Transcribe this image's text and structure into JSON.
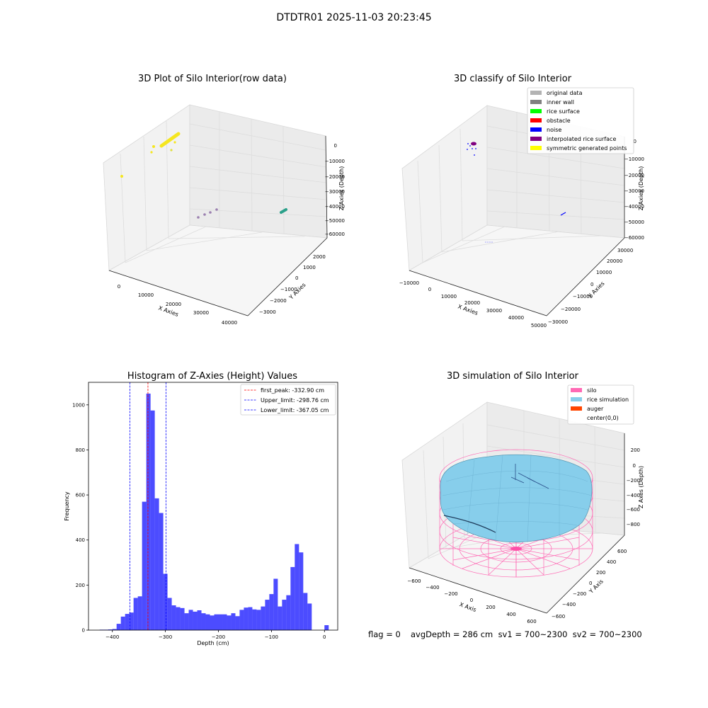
{
  "figure": {
    "suptitle": "DTDTR01 2025-11-03 20:23:45",
    "footer": {
      "flag": "flag = 0",
      "stats": "avgDepth = 286 cm  sv1 = 700~2300  sv2 = 700~2300"
    }
  },
  "chart_data": [
    {
      "type": "scatter",
      "projection": "3d",
      "title": "3D Plot of Silo Interior(row data)",
      "xlabel": "X Axies",
      "ylabel": "Y Axies",
      "zlabel": "Z Axies (Depth)",
      "x_ticks": [
        "0",
        "10000",
        "20000",
        "30000",
        "40000"
      ],
      "y_ticks": [
        "2000",
        "1000",
        "0",
        "−1000",
        "−2000",
        "−3000"
      ],
      "z_ticks": [
        "0",
        "−10000",
        "−20000",
        "−30000",
        "−40000",
        "−50000",
        "−60000"
      ],
      "colors": {
        "yellow": "#f5e61f",
        "purple": "#9b80b0",
        "teal": "#2aa08a"
      }
    },
    {
      "type": "scatter",
      "projection": "3d",
      "title": "3D classify of Silo Interior",
      "xlabel": "X Axies",
      "ylabel": "Y Axies",
      "zlabel": "Z Axies (Depth)",
      "x_ticks": [
        "−10000",
        "0",
        "10000",
        "20000",
        "30000",
        "40000",
        "50000"
      ],
      "y_ticks": [
        "30000",
        "20000",
        "10000",
        "0",
        "−10000",
        "−20000",
        "−30000"
      ],
      "z_ticks": [
        "0",
        "−10000",
        "−20000",
        "−30000",
        "−40000",
        "−50000",
        "−60000"
      ],
      "legend_position": "top-right",
      "legend": [
        {
          "label": "original data",
          "color": "#b3b3b3"
        },
        {
          "label": "inner wall",
          "color": "#808080"
        },
        {
          "label": "rice surface",
          "color": "#00ff00"
        },
        {
          "label": "obstacle",
          "color": "#ff0000"
        },
        {
          "label": "noise",
          "color": "#0000ff"
        },
        {
          "label": "interpolated rice surface",
          "color": "#800080"
        },
        {
          "label": "symmetric generated points",
          "color": "#ffff00"
        }
      ]
    },
    {
      "type": "bar",
      "title": "Histogram of Z-Axies (Height) Values",
      "xlabel": "Depth (cm)",
      "ylabel": "Frequency",
      "xlim": [
        -445,
        25
      ],
      "ylim": [
        0,
        1100
      ],
      "x_ticks": [
        -400,
        -300,
        -200,
        -100,
        0
      ],
      "y_ticks": [
        0,
        200,
        400,
        600,
        800,
        1000
      ],
      "bar_color": "#0000ff",
      "bin_width": 8,
      "bins_start": [
        -424,
        -416,
        -408,
        -400,
        -392,
        -384,
        -376,
        -368,
        -360,
        -352,
        -344,
        -336,
        -328,
        -320,
        -312,
        -304,
        -296,
        -288,
        -280,
        -272,
        -264,
        -256,
        -248,
        -240,
        -232,
        -224,
        -216,
        -208,
        -200,
        -192,
        -184,
        -176,
        -168,
        -160,
        -152,
        -144,
        -136,
        -128,
        -120,
        -112,
        -104,
        -96,
        -88,
        -80,
        -72,
        -64,
        -56,
        -48,
        -40,
        -32,
        -24,
        -16,
        -8,
        0
      ],
      "values": [
        2,
        2,
        3,
        5,
        28,
        60,
        72,
        78,
        143,
        150,
        570,
        1050,
        975,
        585,
        520,
        250,
        143,
        110,
        102,
        98,
        75,
        90,
        82,
        88,
        75,
        70,
        65,
        70,
        70,
        70,
        65,
        75,
        62,
        90,
        100,
        102,
        92,
        90,
        105,
        135,
        160,
        228,
        105,
        135,
        155,
        280,
        382,
        345,
        165,
        118,
        0,
        0,
        0,
        22
      ],
      "vlines": [
        {
          "label": "first_peak: -332.90 cm",
          "x": -332.9,
          "color": "#ff0000"
        },
        {
          "label": "Upper_limit: -298.76 cm",
          "x": -298.76,
          "color": "#0000ff"
        },
        {
          "label": "Lower_limit: -367.05 cm",
          "x": -367.05,
          "color": "#0000ff"
        }
      ],
      "legend_position": "top-right"
    },
    {
      "type": "surface",
      "projection": "3d",
      "title": "3D simulation of Silo Interior",
      "xlabel": "X Axis",
      "ylabel": "Y Axis",
      "zlabel": "Z Axes (Depth)",
      "x_ticks": [
        "−600",
        "−400",
        "−200",
        "0",
        "200",
        "400",
        "600"
      ],
      "y_ticks": [
        "600",
        "400",
        "200",
        "0",
        "−200",
        "−400",
        "−600"
      ],
      "z_ticks": [
        "200",
        "0",
        "−200",
        "−400",
        "−600",
        "−800"
      ],
      "legend_position": "top-right",
      "legend": [
        {
          "label": "silo",
          "color": "#ff69b4"
        },
        {
          "label": "rice simulation",
          "color": "#87ceeb"
        },
        {
          "label": "auger",
          "color": "#ff4500"
        },
        {
          "label": "center(0,0)",
          "color": "#ffffff"
        }
      ]
    }
  ]
}
